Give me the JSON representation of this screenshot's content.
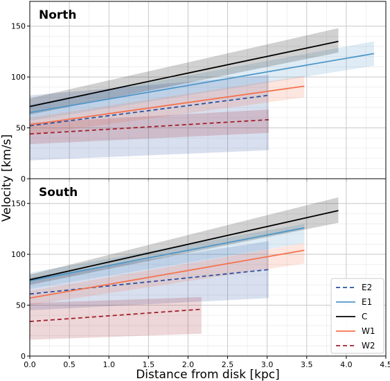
{
  "xlabel": "Distance from disk [kpc]",
  "ylabel": "Velocity [km/s]",
  "chart_data": [
    {
      "type": "line",
      "title": "North",
      "xlim": [
        0,
        4.5
      ],
      "ylim": [
        0,
        160
      ],
      "xticks": [
        "0.0",
        "0.5",
        "1.0",
        "1.5",
        "2.0",
        "2.5",
        "3.0",
        "3.5",
        "4.0",
        "4.5"
      ],
      "yticks": [
        "0",
        "50",
        "100",
        "150"
      ],
      "grid": true,
      "series": [
        {
          "name": "E2",
          "color": "#2850a0",
          "dash": true,
          "x": [
            0,
            3.02
          ],
          "y": [
            52,
            82
          ],
          "band_low": [
            18,
            28
          ],
          "band_high": [
            82,
            102
          ]
        },
        {
          "name": "E1",
          "color": "#4e97c9",
          "dash": false,
          "x": [
            0,
            4.35
          ],
          "y": [
            65,
            123
          ],
          "band_low": [
            57,
            111
          ],
          "band_high": [
            73,
            135
          ]
        },
        {
          "name": "C",
          "color": "#000000",
          "dash": false,
          "x": [
            0,
            3.9
          ],
          "y": [
            71,
            135
          ],
          "band_low": [
            63,
            124
          ],
          "band_high": [
            79,
            148
          ]
        },
        {
          "name": "W1",
          "color": "#f4734e",
          "dash": false,
          "x": [
            0,
            3.47
          ],
          "y": [
            53,
            91
          ],
          "band_low": [
            43,
            80
          ],
          "band_high": [
            60,
            101
          ]
        },
        {
          "name": "W2",
          "color": "#a0202c",
          "dash": true,
          "x": [
            0,
            3.02
          ],
          "y": [
            44,
            58
          ],
          "band_low": [
            34,
            45
          ],
          "band_high": [
            55,
            68
          ]
        }
      ]
    },
    {
      "type": "line",
      "title": "South",
      "xlim": [
        0,
        4.5
      ],
      "ylim": [
        0,
        160
      ],
      "xticks": [
        "0.0",
        "0.5",
        "1.0",
        "1.5",
        "2.0",
        "2.5",
        "3.0",
        "3.5",
        "4.0",
        "4.5"
      ],
      "yticks": [
        "0",
        "50",
        "100",
        "150"
      ],
      "grid": true,
      "legend": "lower-right",
      "series": [
        {
          "name": "E2",
          "color": "#2850a0",
          "dash": true,
          "x": [
            0,
            3.02
          ],
          "y": [
            61,
            85
          ],
          "band_low": [
            45,
            57
          ],
          "band_high": [
            77,
            113
          ]
        },
        {
          "name": "E1",
          "color": "#4e97c9",
          "dash": false,
          "x": [
            0,
            3.47
          ],
          "y": [
            74,
            126
          ],
          "band_low": [
            66,
            111
          ],
          "band_high": [
            82,
            130
          ]
        },
        {
          "name": "C",
          "color": "#000000",
          "dash": false,
          "x": [
            0,
            3.9
          ],
          "y": [
            75,
            143
          ],
          "band_low": [
            70,
            131
          ],
          "band_high": [
            80,
            156
          ]
        },
        {
          "name": "W1",
          "color": "#f4734e",
          "dash": false,
          "x": [
            0,
            3.47
          ],
          "y": [
            57,
            104
          ],
          "band_low": [
            50,
            91
          ],
          "band_high": [
            64,
            111
          ]
        },
        {
          "name": "W2",
          "color": "#a0202c",
          "dash": true,
          "x": [
            0,
            2.17
          ],
          "y": [
            34,
            46
          ],
          "band_low": [
            16,
            22
          ],
          "band_high": [
            52,
            58
          ]
        }
      ]
    }
  ],
  "legend_order": [
    "E2",
    "E1",
    "C",
    "W1",
    "W2"
  ]
}
